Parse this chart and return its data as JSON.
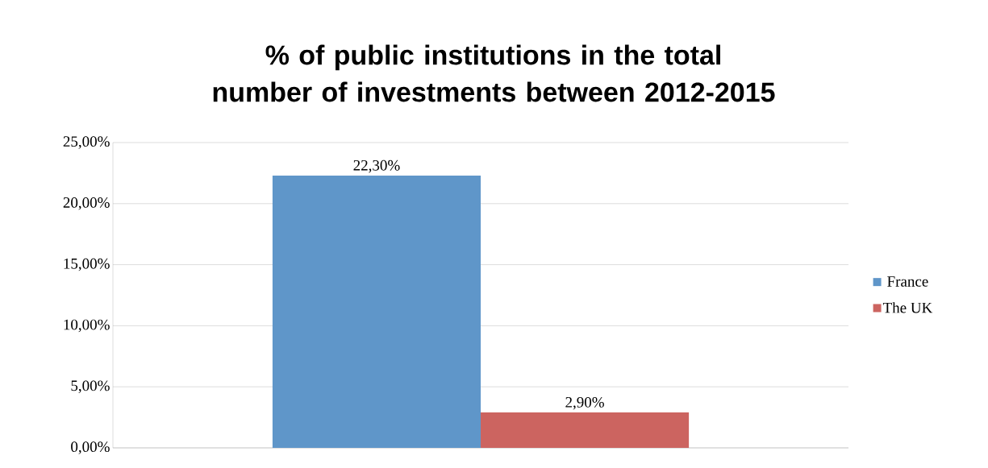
{
  "chart_data": {
    "type": "bar",
    "title": "% of public institutions in the total number of investments between 2012-2015",
    "categories": [
      null
    ],
    "series": [
      {
        "name": "France",
        "color": "#5f96c9",
        "values": [
          22.3
        ],
        "value_labels": [
          "22,30%"
        ]
      },
      {
        "name": "The UK",
        "color": "#cc6460",
        "values": [
          2.9
        ],
        "value_labels": [
          "2,90%"
        ]
      }
    ],
    "ylim": [
      0,
      25
    ],
    "yticks": [
      {
        "value": 0,
        "label": "0,00%"
      },
      {
        "value": 5,
        "label": "5,00%"
      },
      {
        "value": 10,
        "label": "10,00%"
      },
      {
        "value": 15,
        "label": "15,00%"
      },
      {
        "value": 20,
        "label": "20,00%"
      },
      {
        "value": 25,
        "label": "25,00%"
      }
    ],
    "grid": "y",
    "legend": "right"
  }
}
